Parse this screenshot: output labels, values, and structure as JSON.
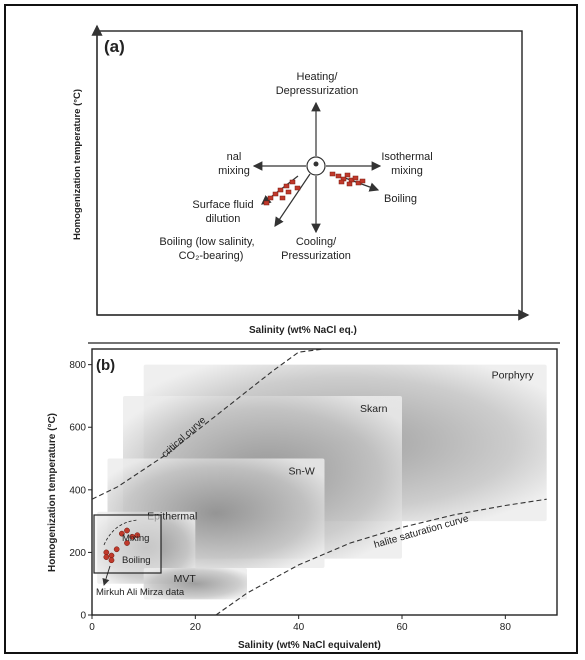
{
  "chart_data": [
    {
      "type": "scatter",
      "panel_label": "(a)",
      "xlabel": "Salinity (wt% NaCl eq.)",
      "ylabel": "Homogenization temperature (°C)",
      "annotations": {
        "heating": [
          "Heating/",
          "Depressurization"
        ],
        "isothermal": [
          "Isothermal",
          "mixing"
        ],
        "nal": [
          "nal",
          "mixing"
        ],
        "boiling": "Boiling",
        "surface": [
          "Surface fluid",
          "dilution"
        ],
        "boiling_low": [
          "Boiling (low salinity,",
          "CO₂-bearing)"
        ],
        "cooling": [
          "Cooling/",
          "Pressurization"
        ]
      },
      "grid": false
    },
    {
      "type": "area",
      "panel_label": "(b)",
      "xlabel": "Salinity (wt% NaCl equivalent)",
      "ylabel": "Homogenization temperature (°C)",
      "xlim": [
        0,
        90
      ],
      "ylim": [
        0,
        850
      ],
      "xticks": [
        0,
        20,
        40,
        60,
        80
      ],
      "yticks": [
        0,
        200,
        400,
        600,
        800
      ],
      "fields": [
        {
          "name": "Porphyry",
          "x": [
            10,
            88
          ],
          "y": [
            300,
            800
          ]
        },
        {
          "name": "Skarn",
          "x": [
            6,
            60
          ],
          "y": [
            180,
            700
          ]
        },
        {
          "name": "Sn-W",
          "x": [
            3,
            45
          ],
          "y": [
            150,
            500
          ]
        },
        {
          "name": "Epithermal",
          "x": [
            1,
            20
          ],
          "y": [
            100,
            330
          ]
        },
        {
          "name": "MVT",
          "x": [
            10,
            30
          ],
          "y": [
            50,
            150
          ]
        }
      ],
      "curves": [
        {
          "name": "critical curve",
          "x": [
            0,
            5,
            10,
            15,
            20,
            25,
            30,
            35,
            40,
            45
          ],
          "y": [
            370,
            410,
            465,
            520,
            585,
            650,
            715,
            780,
            840,
            890
          ]
        },
        {
          "name": "halite saturation curve",
          "x": [
            24,
            30,
            40,
            50,
            60,
            70,
            80,
            88
          ],
          "y": [
            0,
            70,
            160,
            230,
            280,
            320,
            350,
            370
          ]
        }
      ],
      "inset": {
        "labels": {
          "mixing": "Mixing",
          "boiling": "Boiling",
          "data": "Mirkuh Ali Mirza data"
        },
        "points": [
          [
            2,
            200
          ],
          [
            3,
            190
          ],
          [
            4,
            210
          ],
          [
            5,
            260
          ],
          [
            6,
            270
          ],
          [
            7,
            250
          ],
          [
            3,
            175
          ],
          [
            2,
            185
          ],
          [
            8,
            255
          ],
          [
            6,
            230
          ]
        ]
      },
      "grid": false
    }
  ]
}
